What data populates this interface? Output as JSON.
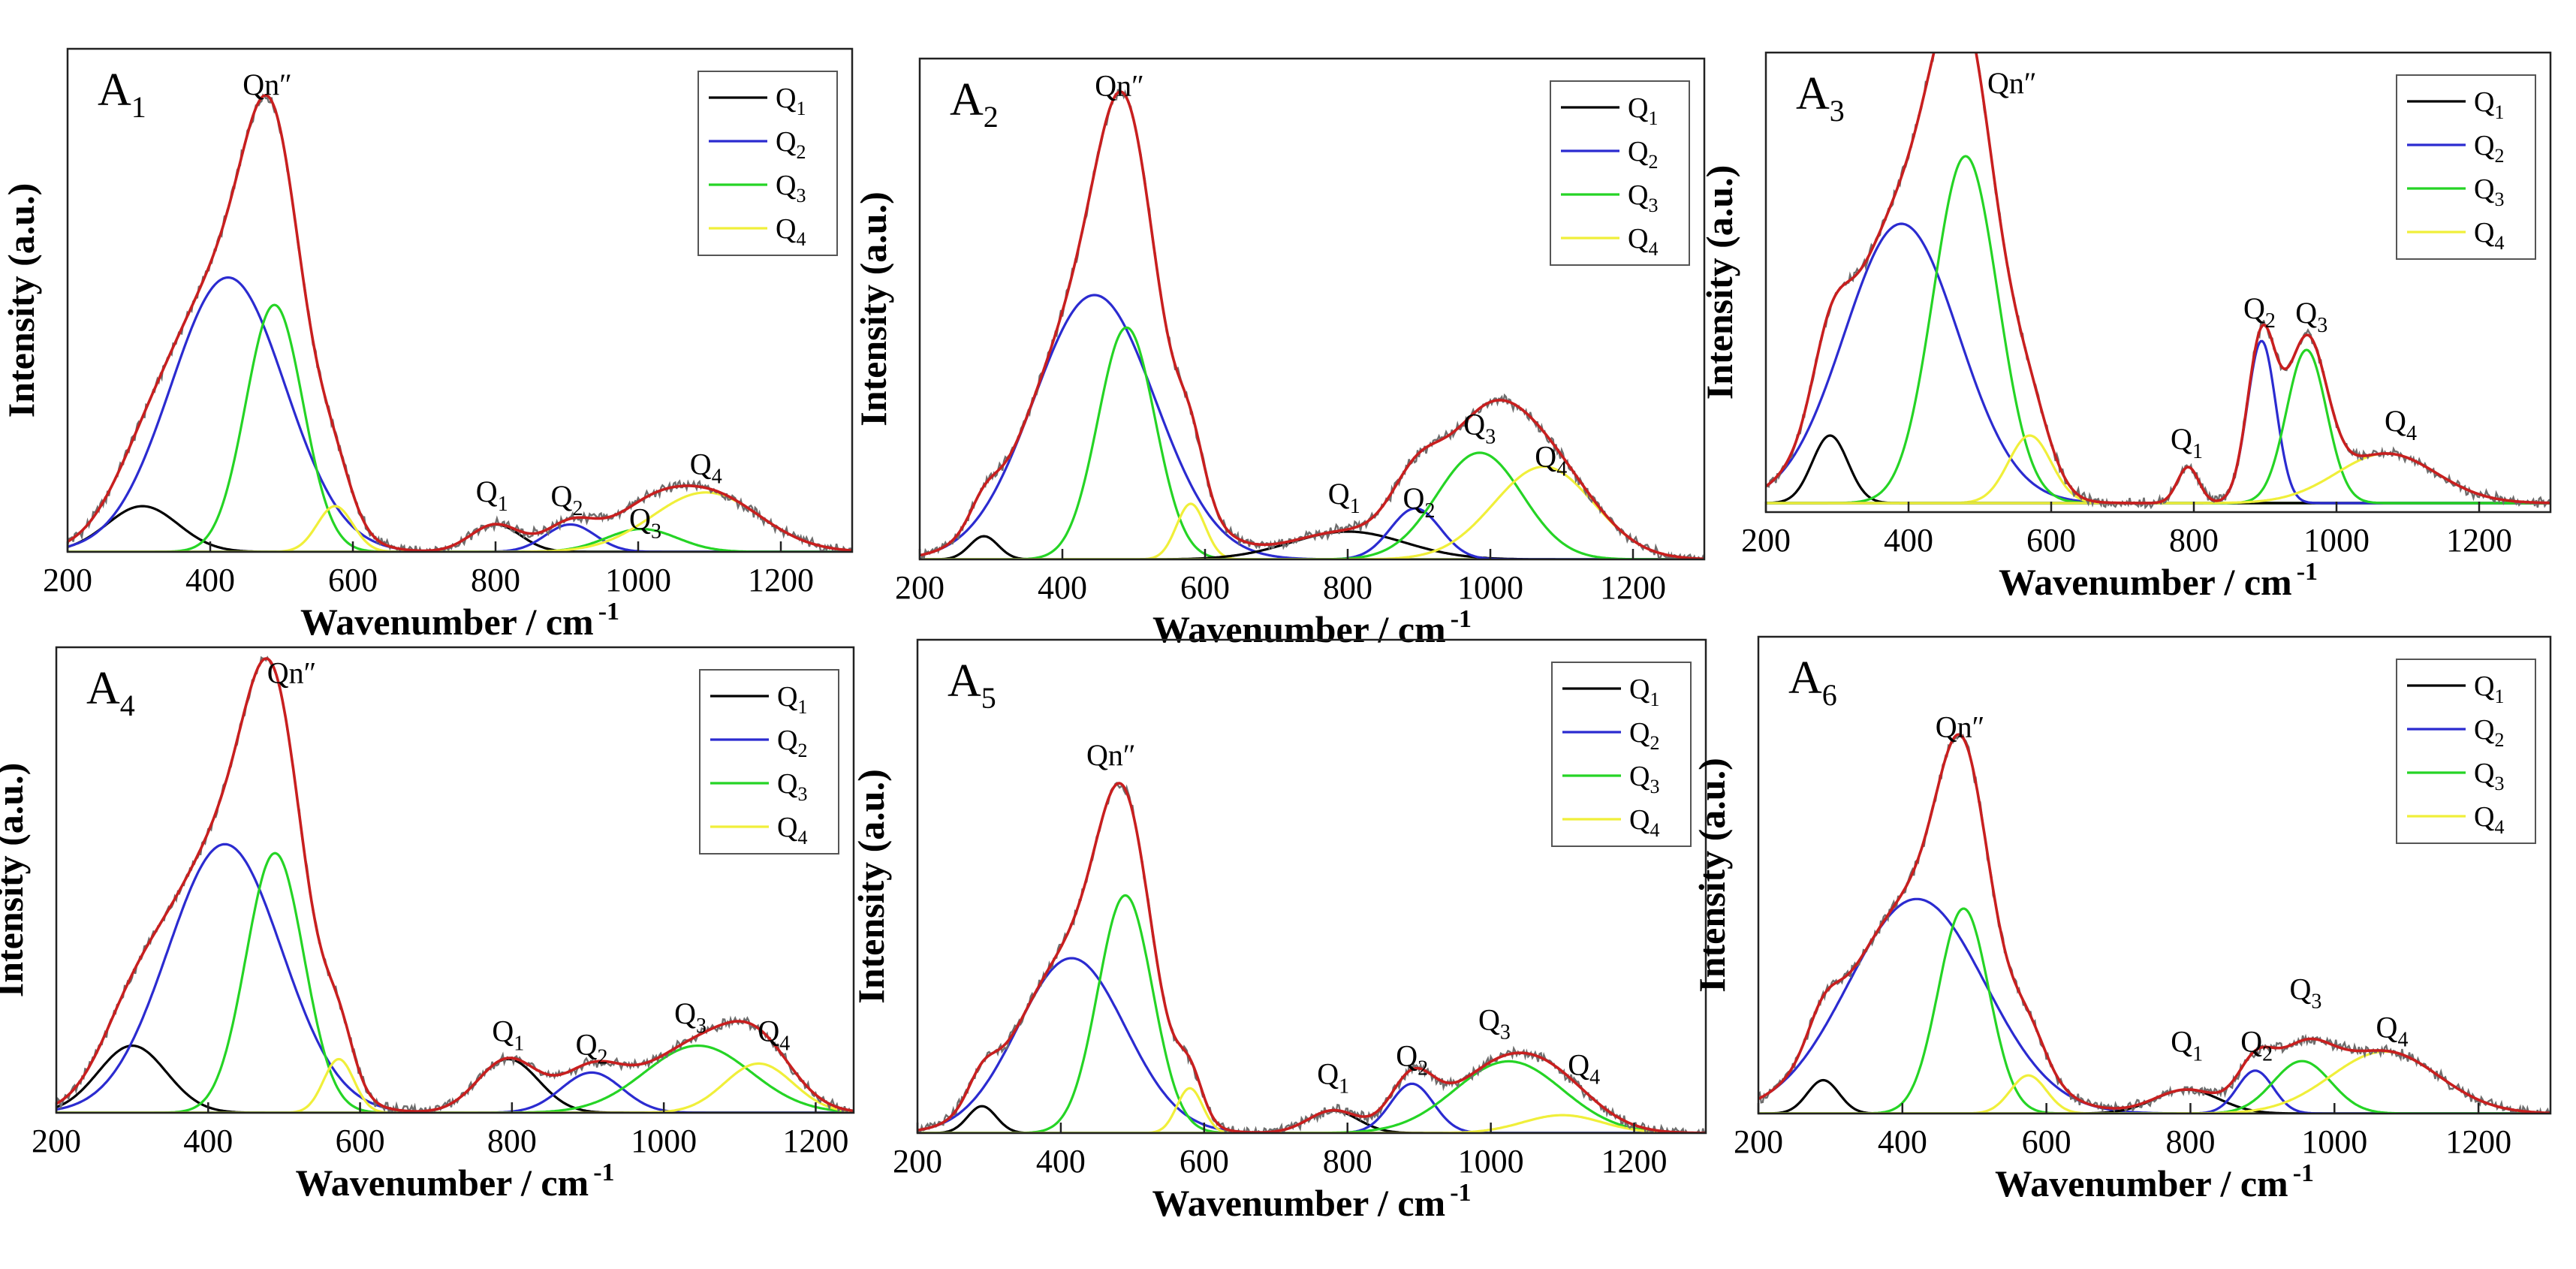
{
  "colors": {
    "Q1": "#000000",
    "Q2": "#2b2bd0",
    "Q3": "#25d425",
    "Q4": "#f0ef3a",
    "fit": "#c81f1f",
    "raw": "#6d6d6d",
    "frame": "#222222"
  },
  "chart_data": [
    {
      "type": "line",
      "panel_label": "A",
      "panel_sub": "1",
      "xlabel_main": "Wavenumber / cm",
      "xlabel_sup": "-1",
      "ylabel": "Intensity (a.u.)",
      "xlim": [
        200,
        1300
      ],
      "xticks": [
        200,
        400,
        600,
        800,
        1000,
        1200
      ],
      "ylim": [
        0,
        1.1
      ],
      "legend": [
        {
          "base": "Q",
          "sub": "1",
          "key": "Q1"
        },
        {
          "base": "Q",
          "sub": "2",
          "key": "Q2"
        },
        {
          "base": "Q",
          "sub": "3",
          "key": "Q3"
        },
        {
          "base": "Q",
          "sub": "4",
          "key": "Q4"
        }
      ],
      "peaks": [
        {
          "key": "Q1",
          "center": 305,
          "height": 0.1,
          "width": 50
        },
        {
          "key": "Q2",
          "center": 425,
          "height": 0.6,
          "width": 80
        },
        {
          "key": "Q3",
          "center": 490,
          "height": 0.54,
          "width": 40
        },
        {
          "key": "Q4",
          "center": 575,
          "height": 0.1,
          "width": 25
        },
        {
          "key": "Q1",
          "center": 800,
          "height": 0.06,
          "width": 35
        },
        {
          "key": "Q2",
          "center": 905,
          "height": 0.06,
          "width": 35
        },
        {
          "key": "Q3",
          "center": 1005,
          "height": 0.05,
          "width": 50
        },
        {
          "key": "Q4",
          "center": 1095,
          "height": 0.13,
          "width": 75
        }
      ],
      "annotations": [
        {
          "base": "Qn″",
          "sub": "",
          "x": 480,
          "y": 1.0
        },
        {
          "base": "Q",
          "sub": "1",
          "x": 795,
          "y": 0.11
        },
        {
          "base": "Q",
          "sub": "2",
          "x": 900,
          "y": 0.1
        },
        {
          "base": "Q",
          "sub": "3",
          "x": 1010,
          "y": 0.05
        },
        {
          "base": "Q",
          "sub": "4",
          "x": 1095,
          "y": 0.17
        }
      ]
    },
    {
      "type": "line",
      "panel_label": "A",
      "panel_sub": "2",
      "xlabel_main": "Wavenumber / cm",
      "xlabel_sup": "-1",
      "ylabel": "Intensity (a.u.)",
      "xlim": [
        200,
        1300
      ],
      "xticks": [
        200,
        400,
        600,
        800,
        1000,
        1200
      ],
      "ylim": [
        0,
        1.08
      ],
      "legend": [
        {
          "base": "Q",
          "sub": "1",
          "key": "Q1"
        },
        {
          "base": "Q",
          "sub": "2",
          "key": "Q2"
        },
        {
          "base": "Q",
          "sub": "3",
          "key": "Q3"
        },
        {
          "base": "Q",
          "sub": "4",
          "key": "Q4"
        }
      ],
      "peaks": [
        {
          "key": "Q1",
          "center": 290,
          "height": 0.05,
          "width": 20
        },
        {
          "key": "Q2",
          "center": 445,
          "height": 0.57,
          "width": 85
        },
        {
          "key": "Q3",
          "center": 490,
          "height": 0.5,
          "width": 40
        },
        {
          "key": "Q4",
          "center": 580,
          "height": 0.12,
          "width": 20
        },
        {
          "key": "Q1",
          "center": 800,
          "height": 0.06,
          "width": 80
        },
        {
          "key": "Q2",
          "center": 895,
          "height": 0.11,
          "width": 35
        },
        {
          "key": "Q3",
          "center": 985,
          "height": 0.23,
          "width": 60
        },
        {
          "key": "Q4",
          "center": 1075,
          "height": 0.2,
          "width": 70
        }
      ],
      "annotations": [
        {
          "base": "Qn″",
          "sub": "",
          "x": 480,
          "y": 1.0
        },
        {
          "base": "Q",
          "sub": "1",
          "x": 795,
          "y": 0.12
        },
        {
          "base": "Q",
          "sub": "2",
          "x": 900,
          "y": 0.11
        },
        {
          "base": "Q",
          "sub": "3",
          "x": 985,
          "y": 0.27
        },
        {
          "base": "Q",
          "sub": "4",
          "x": 1085,
          "y": 0.2
        }
      ]
    },
    {
      "type": "line",
      "panel_label": "A",
      "panel_sub": "3",
      "xlabel_main": "Wavenumber / cm",
      "xlabel_sup": "-1",
      "ylabel": "Intensity (a.u.)",
      "xlim": [
        200,
        1300
      ],
      "xticks": [
        200,
        400,
        600,
        800,
        1000,
        1200
      ],
      "ylim": [
        -0.02,
        1.0
      ],
      "legend": [
        {
          "base": "Q",
          "sub": "1",
          "key": "Q1"
        },
        {
          "base": "Q",
          "sub": "2",
          "key": "Q2"
        },
        {
          "base": "Q",
          "sub": "3",
          "key": "Q3"
        },
        {
          "base": "Q",
          "sub": "4",
          "key": "Q4"
        }
      ],
      "peaks": [
        {
          "key": "Q1",
          "center": 290,
          "height": 0.15,
          "width": 25
        },
        {
          "key": "Q2",
          "center": 390,
          "height": 0.62,
          "width": 80
        },
        {
          "key": "Q3",
          "center": 480,
          "height": 0.77,
          "width": 45
        },
        {
          "key": "Q4",
          "center": 570,
          "height": 0.15,
          "width": 30
        },
        {
          "key": "Q1",
          "center": 792,
          "height": 0.08,
          "width": 15
        },
        {
          "key": "Q2",
          "center": 895,
          "height": 0.36,
          "width": 20
        },
        {
          "key": "Q3",
          "center": 958,
          "height": 0.34,
          "width": 28
        },
        {
          "key": "Q4",
          "center": 1070,
          "height": 0.11,
          "width": 70
        }
      ],
      "annotations": [
        {
          "base": "Qn″",
          "sub": "",
          "x": 545,
          "y": 0.91
        },
        {
          "base": "Q",
          "sub": "1",
          "x": 790,
          "y": 0.12
        },
        {
          "base": "Q",
          "sub": "2",
          "x": 892,
          "y": 0.41
        },
        {
          "base": "Q",
          "sub": "3",
          "x": 965,
          "y": 0.4
        },
        {
          "base": "Q",
          "sub": "4",
          "x": 1090,
          "y": 0.16
        }
      ]
    },
    {
      "type": "line",
      "panel_label": "A",
      "panel_sub": "4",
      "xlabel_main": "Wavenumber / cm",
      "xlabel_sup": "-1",
      "ylabel": "Intensity (a.u.)",
      "xlim": [
        200,
        1250
      ],
      "xticks": [
        200,
        400,
        600,
        800,
        1000,
        1200
      ],
      "ylim": [
        0,
        1.04
      ],
      "legend": [
        {
          "base": "Q",
          "sub": "1",
          "key": "Q1"
        },
        {
          "base": "Q",
          "sub": "2",
          "key": "Q2"
        },
        {
          "base": "Q",
          "sub": "3",
          "key": "Q3"
        },
        {
          "base": "Q",
          "sub": "4",
          "key": "Q4"
        }
      ],
      "peaks": [
        {
          "key": "Q1",
          "center": 300,
          "height": 0.15,
          "width": 45
        },
        {
          "key": "Q2",
          "center": 422,
          "height": 0.6,
          "width": 75
        },
        {
          "key": "Q3",
          "center": 488,
          "height": 0.58,
          "width": 38
        },
        {
          "key": "Q4",
          "center": 572,
          "height": 0.12,
          "width": 20
        },
        {
          "key": "Q1",
          "center": 795,
          "height": 0.12,
          "width": 40
        },
        {
          "key": "Q2",
          "center": 905,
          "height": 0.09,
          "width": 40
        },
        {
          "key": "Q3",
          "center": 1045,
          "height": 0.15,
          "width": 70
        },
        {
          "key": "Q4",
          "center": 1125,
          "height": 0.11,
          "width": 45
        }
      ],
      "annotations": [
        {
          "base": "Qn″",
          "sub": "",
          "x": 510,
          "y": 0.96
        },
        {
          "base": "Q",
          "sub": "1",
          "x": 795,
          "y": 0.16
        },
        {
          "base": "Q",
          "sub": "2",
          "x": 905,
          "y": 0.13
        },
        {
          "base": "Q",
          "sub": "3",
          "x": 1035,
          "y": 0.2
        },
        {
          "base": "Q",
          "sub": "4",
          "x": 1145,
          "y": 0.16
        }
      ]
    },
    {
      "type": "line",
      "panel_label": "A",
      "panel_sub": "5",
      "xlabel_main": "Wavenumber / cm",
      "xlabel_sup": "-1",
      "ylabel": "Intensity (a.u.)",
      "xlim": [
        200,
        1300
      ],
      "xticks": [
        200,
        400,
        600,
        800,
        1000,
        1200
      ],
      "ylim": [
        0,
        1.1
      ],
      "legend": [
        {
          "base": "Q",
          "sub": "1",
          "key": "Q1"
        },
        {
          "base": "Q",
          "sub": "2",
          "key": "Q2"
        },
        {
          "base": "Q",
          "sub": "3",
          "key": "Q3"
        },
        {
          "base": "Q",
          "sub": "4",
          "key": "Q4"
        }
      ],
      "peaks": [
        {
          "key": "Q1",
          "center": 290,
          "height": 0.06,
          "width": 20
        },
        {
          "key": "Q2",
          "center": 415,
          "height": 0.39,
          "width": 75
        },
        {
          "key": "Q3",
          "center": 490,
          "height": 0.53,
          "width": 38
        },
        {
          "key": "Q4",
          "center": 580,
          "height": 0.1,
          "width": 18
        },
        {
          "key": "Q1",
          "center": 780,
          "height": 0.05,
          "width": 35
        },
        {
          "key": "Q2",
          "center": 890,
          "height": 0.11,
          "width": 30
        },
        {
          "key": "Q3",
          "center": 1025,
          "height": 0.16,
          "width": 75
        },
        {
          "key": "Q4",
          "center": 1100,
          "height": 0.04,
          "width": 55
        }
      ],
      "annotations": [
        {
          "base": "Qn″",
          "sub": "",
          "x": 470,
          "y": 0.82
        },
        {
          "base": "Q",
          "sub": "1",
          "x": 780,
          "y": 0.11
        },
        {
          "base": "Q",
          "sub": "2",
          "x": 890,
          "y": 0.15
        },
        {
          "base": "Q",
          "sub": "3",
          "x": 1005,
          "y": 0.23
        },
        {
          "base": "Q",
          "sub": "4",
          "x": 1130,
          "y": 0.13
        }
      ]
    },
    {
      "type": "line",
      "panel_label": "A",
      "panel_sub": "6",
      "xlabel_main": "Wavenumber / cm",
      "xlabel_sup": "-1",
      "ylabel": "Intensity (a.u.)",
      "xlim": [
        200,
        1300
      ],
      "xticks": [
        200,
        400,
        600,
        800,
        1000,
        1200
      ],
      "ylim": [
        0,
        1.0
      ],
      "legend": [
        {
          "base": "Q",
          "sub": "1",
          "key": "Q1"
        },
        {
          "base": "Q",
          "sub": "2",
          "key": "Q2"
        },
        {
          "base": "Q",
          "sub": "3",
          "key": "Q3"
        },
        {
          "base": "Q",
          "sub": "4",
          "key": "Q4"
        }
      ],
      "peaks": [
        {
          "key": "Q1",
          "center": 290,
          "height": 0.07,
          "width": 22
        },
        {
          "key": "Q2",
          "center": 420,
          "height": 0.45,
          "width": 95
        },
        {
          "key": "Q3",
          "center": 485,
          "height": 0.43,
          "width": 35
        },
        {
          "key": "Q4",
          "center": 575,
          "height": 0.08,
          "width": 25
        },
        {
          "key": "Q1",
          "center": 795,
          "height": 0.05,
          "width": 45
        },
        {
          "key": "Q2",
          "center": 890,
          "height": 0.09,
          "width": 25
        },
        {
          "key": "Q3",
          "center": 955,
          "height": 0.11,
          "width": 40
        },
        {
          "key": "Q4",
          "center": 1070,
          "height": 0.13,
          "width": 75
        }
      ],
      "annotations": [
        {
          "base": "Qn″",
          "sub": "",
          "x": 480,
          "y": 0.79
        },
        {
          "base": "Q",
          "sub": "1",
          "x": 795,
          "y": 0.13
        },
        {
          "base": "Q",
          "sub": "2",
          "x": 892,
          "y": 0.13
        },
        {
          "base": "Q",
          "sub": "3",
          "x": 960,
          "y": 0.24
        },
        {
          "base": "Q",
          "sub": "4",
          "x": 1080,
          "y": 0.16
        }
      ]
    }
  ]
}
